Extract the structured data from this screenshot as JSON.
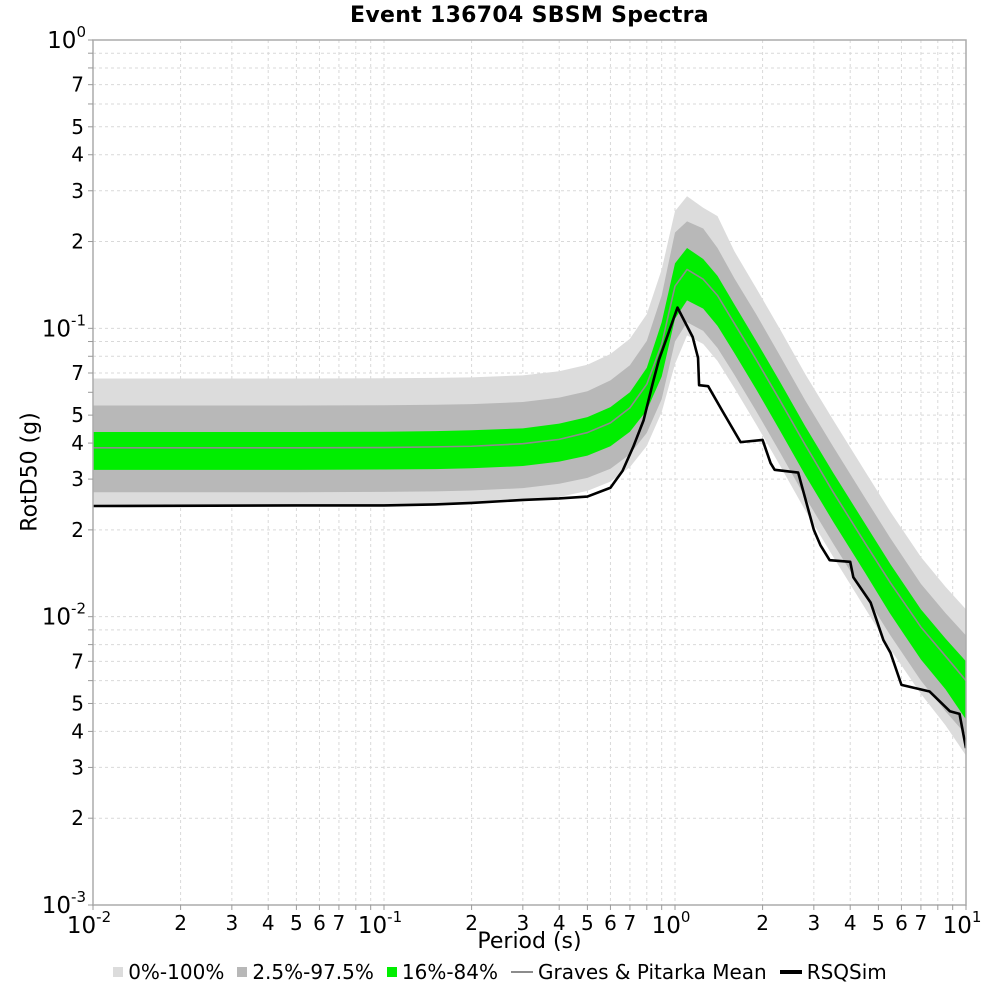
{
  "chart_data": {
    "type": "line",
    "title": "Event 136704 SBSM Spectra",
    "x_axis": {
      "label": "Period (s)",
      "scale": "log",
      "range": [
        0.01,
        10
      ],
      "major_exponents": [
        -2,
        -1,
        0,
        1
      ],
      "minor_tick_labels": [
        2,
        3,
        4,
        5,
        6,
        7
      ]
    },
    "y_axis": {
      "label": "RotD50 (g)",
      "scale": "log",
      "range": [
        0.001,
        1
      ],
      "major_exponents": [
        0,
        -1,
        -2,
        -3
      ],
      "minor_tick_labels": [
        7,
        5,
        4,
        3,
        2
      ]
    },
    "grid": true,
    "legend_position": "bottom",
    "colors": {
      "grid": "#d9d9d9",
      "frame": "#ababab",
      "tick": "#999999"
    },
    "band_periods": [
      0.01,
      0.05,
      0.1,
      0.15,
      0.2,
      0.3,
      0.4,
      0.5,
      0.6,
      0.7,
      0.8,
      0.9,
      1.0,
      1.1,
      1.25,
      1.4,
      1.6,
      1.9,
      2.3,
      2.8,
      3.5,
      4.5,
      5.5,
      7.0,
      8.5,
      10.0
    ],
    "bands": [
      {
        "name": "0%-100%",
        "color": "#dcdcdc",
        "hi": [
          0.067,
          0.067,
          0.0671,
          0.0673,
          0.0676,
          0.0687,
          0.071,
          0.0748,
          0.0815,
          0.092,
          0.112,
          0.16,
          0.255,
          0.287,
          0.262,
          0.245,
          0.185,
          0.138,
          0.099,
          0.0695,
          0.048,
          0.0319,
          0.0231,
          0.0161,
          0.0127,
          0.0106
        ],
        "lo": [
          0.0243,
          0.0243,
          0.0244,
          0.0245,
          0.0247,
          0.0251,
          0.026,
          0.0273,
          0.0294,
          0.033,
          0.0391,
          0.0512,
          0.0752,
          0.0945,
          0.0882,
          0.077,
          0.0621,
          0.0465,
          0.0333,
          0.0234,
          0.0161,
          0.0107,
          0.0077,
          0.0054,
          0.0042,
          0.0033
        ]
      },
      {
        "name": "2.5%-97.5%",
        "color": "#b8b8b8",
        "hi": [
          0.054,
          0.054,
          0.0541,
          0.0543,
          0.0546,
          0.0555,
          0.0575,
          0.0605,
          0.066,
          0.0745,
          0.0905,
          0.13,
          0.215,
          0.235,
          0.222,
          0.19,
          0.149,
          0.112,
          0.08,
          0.0563,
          0.0388,
          0.0258,
          0.0187,
          0.013,
          0.0103,
          0.0086
        ],
        "lo": [
          0.027,
          0.027,
          0.0271,
          0.0272,
          0.0274,
          0.0279,
          0.0289,
          0.0303,
          0.0326,
          0.0366,
          0.0434,
          0.0568,
          0.09,
          0.105,
          0.098,
          0.0855,
          0.069,
          0.0517,
          0.037,
          0.026,
          0.0179,
          0.0119,
          0.0086,
          0.006,
          0.0047,
          0.0039
        ]
      },
      {
        "name": "16%-84%",
        "color": "#00ee00",
        "hi": [
          0.0437,
          0.0437,
          0.0438,
          0.044,
          0.0443,
          0.045,
          0.0467,
          0.0492,
          0.0533,
          0.06,
          0.073,
          0.105,
          0.168,
          0.19,
          0.174,
          0.152,
          0.121,
          0.0905,
          0.065,
          0.0458,
          0.0315,
          0.021,
          0.0152,
          0.0106,
          0.0084,
          0.007
        ],
        "lo": [
          0.0323,
          0.0323,
          0.0324,
          0.0325,
          0.0327,
          0.0333,
          0.0345,
          0.0362,
          0.039,
          0.0438,
          0.052,
          0.068,
          0.108,
          0.125,
          0.117,
          0.102,
          0.082,
          0.0615,
          0.044,
          0.031,
          0.0213,
          0.0142,
          0.0102,
          0.0071,
          0.0056,
          0.0044
        ]
      }
    ],
    "series": [
      {
        "name": "Graves & Pitarka Mean",
        "color": "#8c8c8c",
        "width": 1.6,
        "x": [
          0.01,
          0.05,
          0.1,
          0.15,
          0.2,
          0.3,
          0.4,
          0.5,
          0.6,
          0.7,
          0.8,
          0.9,
          1.0,
          1.1,
          1.25,
          1.4,
          1.6,
          1.9,
          2.3,
          2.8,
          3.5,
          4.5,
          5.5,
          7.0,
          8.5,
          10.0
        ],
        "y": [
          0.0385,
          0.0385,
          0.0386,
          0.0388,
          0.039,
          0.0398,
          0.0412,
          0.0435,
          0.047,
          0.053,
          0.064,
          0.088,
          0.14,
          0.16,
          0.148,
          0.13,
          0.104,
          0.078,
          0.056,
          0.0395,
          0.027,
          0.018,
          0.0131,
          0.0092,
          0.0073,
          0.006
        ]
      },
      {
        "name": "RSQSim",
        "color": "#000000",
        "width": 2.6,
        "x": [
          0.01,
          0.05,
          0.1,
          0.15,
          0.2,
          0.3,
          0.4,
          0.5,
          0.6,
          0.63,
          0.66,
          0.72,
          0.78,
          0.84,
          0.88,
          1.02,
          1.15,
          1.2,
          1.21,
          1.3,
          1.45,
          1.68,
          2.0,
          2.13,
          2.2,
          2.65,
          3.0,
          3.16,
          3.4,
          4.0,
          4.1,
          4.7,
          5.2,
          5.5,
          6.0,
          7.5,
          8.8,
          9.5,
          10.0
        ],
        "y": [
          0.0242,
          0.0243,
          0.0243,
          0.0245,
          0.0248,
          0.0254,
          0.0257,
          0.0261,
          0.028,
          0.03,
          0.032,
          0.039,
          0.048,
          0.065,
          0.0776,
          0.118,
          0.0933,
          0.079,
          0.0635,
          0.063,
          0.052,
          0.0403,
          0.041,
          0.0341,
          0.0323,
          0.0316,
          0.02,
          0.0177,
          0.0157,
          0.0155,
          0.0137,
          0.0112,
          0.0083,
          0.0075,
          0.0058,
          0.0055,
          0.0047,
          0.0046,
          0.0035
        ]
      }
    ]
  },
  "legend": {
    "items": [
      {
        "label": "0%-100%",
        "swatch": "square",
        "color": "#dcdcdc"
      },
      {
        "label": "2.5%-97.5%",
        "swatch": "square",
        "color": "#b8b8b8"
      },
      {
        "label": "16%-84%",
        "swatch": "square",
        "color": "#00ee00"
      },
      {
        "label": "Graves & Pitarka Mean",
        "swatch": "line-thin",
        "color": "#8c8c8c"
      },
      {
        "label": "RSQSim",
        "swatch": "line-thick",
        "color": "#000000"
      }
    ]
  }
}
